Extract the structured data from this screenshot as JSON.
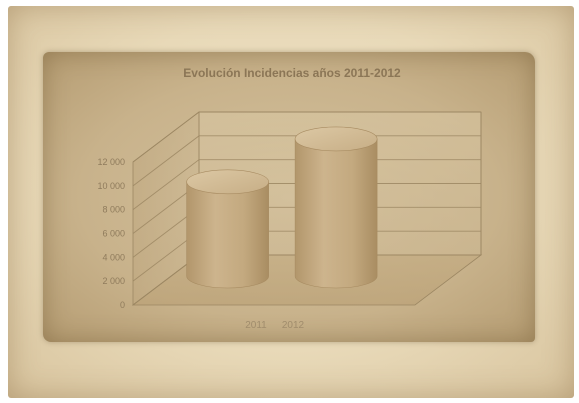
{
  "chart_data": {
    "type": "bar",
    "style": "3d-cylinder",
    "title": "Evolución Incidencias años 2011-2012",
    "categories": [
      "2011",
      "2012"
    ],
    "values": [
      7900,
      11500
    ],
    "ylim": [
      0,
      12000
    ],
    "yticks": [
      "0",
      "2 000",
      "4 000",
      "6 000",
      "8 000",
      "10 000",
      "12 000"
    ],
    "xlabel": "",
    "ylabel": "",
    "grid": true,
    "legend": "none",
    "colors": {
      "cylinder_body": "#c4aa82",
      "cylinder_top": "#d2bc96",
      "grid": "#9c8763"
    }
  }
}
